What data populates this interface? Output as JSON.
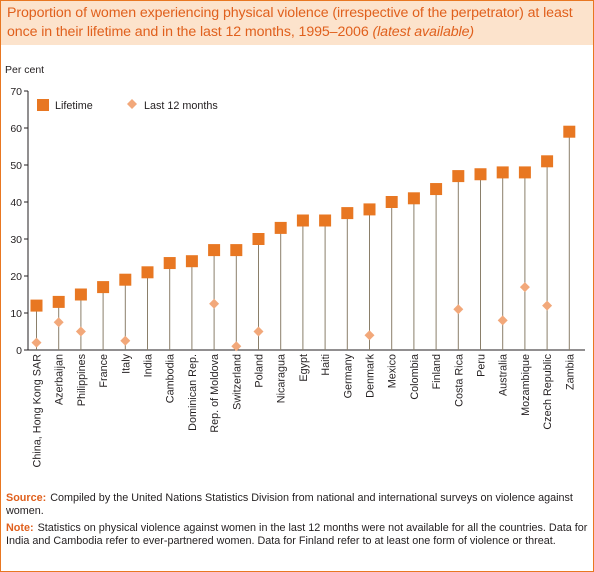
{
  "figure": {
    "title_main": "Proportion of women experiencing physical violence (irrespective of the perpetrator) at least once in their lifetime and in the last 12 months, 1995–2006",
    "title_note": "(latest available)",
    "source_label": "Source:",
    "source_text": "Compiled by the United Nations Statistics Division from national and international surveys on violence against women.",
    "note_label": "Note:",
    "note_text": "Statistics on physical violence against women in the last 12 months were not available for all the countries. Data for India and Cambodia refer to ever-partnered women. Data for Finland refer to at least one form of violence or threat."
  },
  "colors": {
    "lifetime": "#e87722",
    "last12": "#f2a87a",
    "stem": "#8a7f6a",
    "axis": "#231f20",
    "title_bg": "#fce3cc",
    "title_text": "#e0601d"
  },
  "chart_data": {
    "type": "scatter",
    "ylabel": "Per cent",
    "ylim": [
      0,
      70
    ],
    "yticks": [
      0,
      10,
      20,
      30,
      40,
      50,
      60,
      70
    ],
    "grid": false,
    "legend_position": "top-left",
    "categories": [
      "China, Hong Kong SAR",
      "Azerbaijan",
      "Philippines",
      "France",
      "Italy",
      "India",
      "Cambodia",
      "Dominican Rep.",
      "Rep. of Moldova",
      "Switzerland",
      "Poland",
      "Nicaragua",
      "Egypt",
      "Haiti",
      "Germany",
      "Denmark",
      "Mexico",
      "Colombia",
      "Finland",
      "Costa Rica",
      "Peru",
      "Australia",
      "Mozambique",
      "Czech Republic",
      "Zambia"
    ],
    "series": [
      {
        "name": "Lifetime",
        "marker": "square",
        "values": [
          12,
          13,
          15,
          17,
          19,
          21,
          23.5,
          24,
          27,
          27,
          30,
          33,
          35,
          35,
          37,
          38,
          40,
          41,
          43.5,
          47,
          47.5,
          48,
          48,
          51,
          59
        ]
      },
      {
        "name": "Last 12 months",
        "marker": "diamond",
        "values": [
          2,
          7.5,
          5,
          null,
          2.5,
          null,
          null,
          null,
          12.5,
          1,
          5,
          null,
          null,
          null,
          null,
          4,
          null,
          null,
          null,
          11,
          null,
          8,
          17,
          12,
          null
        ]
      }
    ]
  }
}
